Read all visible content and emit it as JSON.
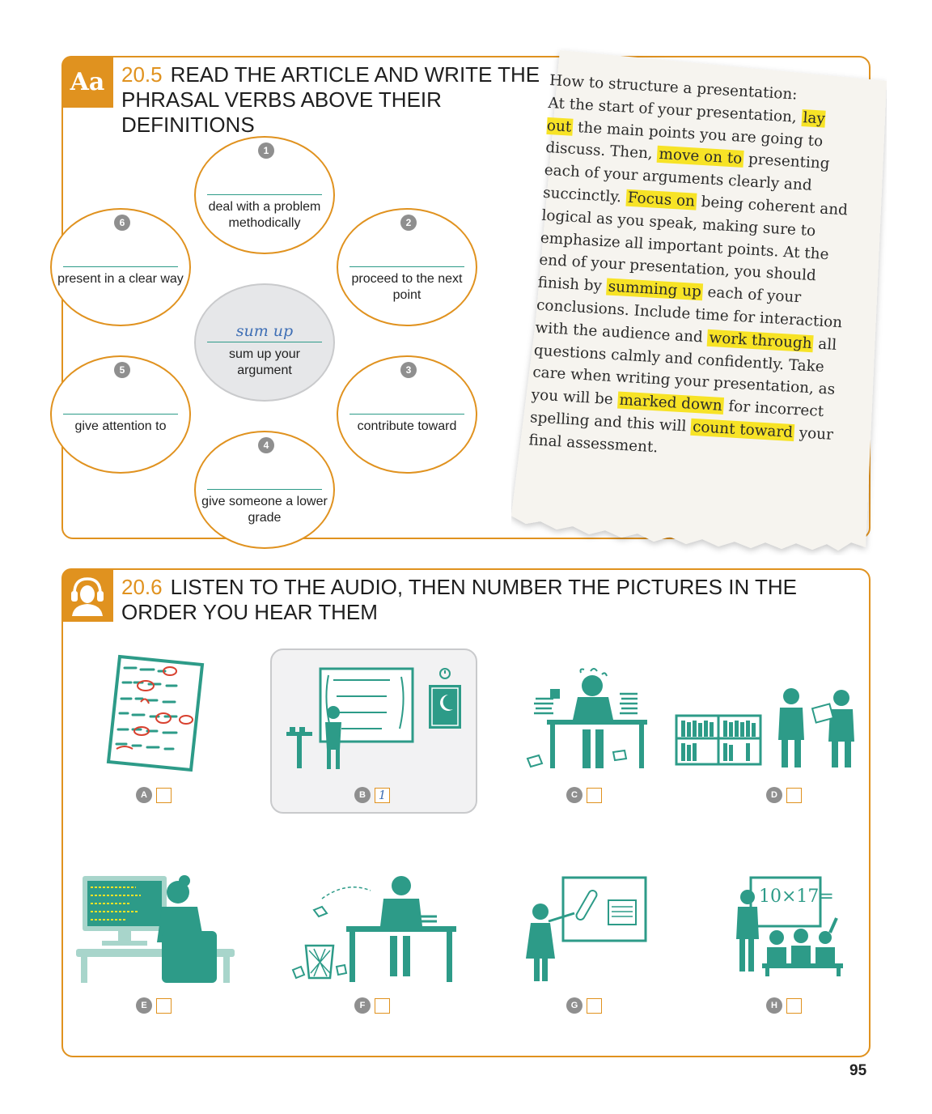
{
  "exercise_1": {
    "icon_text": "Aa",
    "number": "20.5",
    "title": "READ THE ARTICLE AND WRITE THE PHRASAL VERBS ABOVE THEIR DEFINITIONS",
    "center": {
      "answer": "sum up",
      "definition": "sum up your argument"
    },
    "bubbles": [
      {
        "number": "1",
        "definition": "deal with a problem methodically"
      },
      {
        "number": "2",
        "definition": "proceed to the next point"
      },
      {
        "number": "3",
        "definition": "contribute toward"
      },
      {
        "number": "4",
        "definition": "give someone a lower grade"
      },
      {
        "number": "5",
        "definition": "give attention to"
      },
      {
        "number": "6",
        "definition": "present in a clear way"
      }
    ]
  },
  "article": {
    "title": "How to structure a presentation:",
    "segments": [
      {
        "t": "At the start of your presentation, ",
        "hl": false
      },
      {
        "t": "lay out",
        "hl": true
      },
      {
        "t": " the main points you are going to discuss. Then, ",
        "hl": false
      },
      {
        "t": "move on to",
        "hl": true
      },
      {
        "t": " presenting each of your arguments clearly and succinctly. ",
        "hl": false
      },
      {
        "t": "Focus on",
        "hl": true
      },
      {
        "t": " being coherent and logical as you speak, making sure to emphasize all important points. At the end of your presentation, you should finish by ",
        "hl": false
      },
      {
        "t": "summing up",
        "hl": true
      },
      {
        "t": " each of your conclusions. Include time for interaction with the audience and ",
        "hl": false
      },
      {
        "t": "work through",
        "hl": true
      },
      {
        "t": " all questions calmly and confidently. Take care when writing your presentation, as you will be ",
        "hl": false
      },
      {
        "t": "marked down",
        "hl": true
      },
      {
        "t": " for incorrect spelling and this will ",
        "hl": false
      },
      {
        "t": "count toward",
        "hl": true
      },
      {
        "t": " your final assessment.",
        "hl": false
      }
    ],
    "highlight_color": "#f7e326"
  },
  "exercise_2": {
    "icon": "headphones-person-icon",
    "number": "20.6",
    "title": "LISTEN TO THE AUDIO, THEN NUMBER THE PICTURES IN THE ORDER YOU HEAR THEM",
    "pictures": [
      {
        "letter": "A",
        "answer": "",
        "depicts": "marked-paper-icon"
      },
      {
        "letter": "B",
        "answer": "1",
        "depicts": "student-at-whiteboard-icon"
      },
      {
        "letter": "C",
        "answer": "",
        "depicts": "stressed-student-at-desk-icon"
      },
      {
        "letter": "D",
        "answer": "",
        "depicts": "library-discussion-icon"
      },
      {
        "letter": "E",
        "answer": "",
        "depicts": "student-at-computer-icon"
      },
      {
        "letter": "F",
        "answer": "",
        "depicts": "student-throwing-paper-icon"
      },
      {
        "letter": "G",
        "answer": "",
        "depicts": "teacher-pointing-at-board-icon"
      },
      {
        "letter": "H",
        "answer": "",
        "depicts": "classroom-math-icon"
      }
    ],
    "board_text_h": "10×17="
  },
  "page_number": "95",
  "colors": {
    "accent": "#e0921f",
    "teal": "#2d9b88",
    "answer_blue": "#3f6fb5",
    "badge_gray": "#8f8f8f"
  }
}
